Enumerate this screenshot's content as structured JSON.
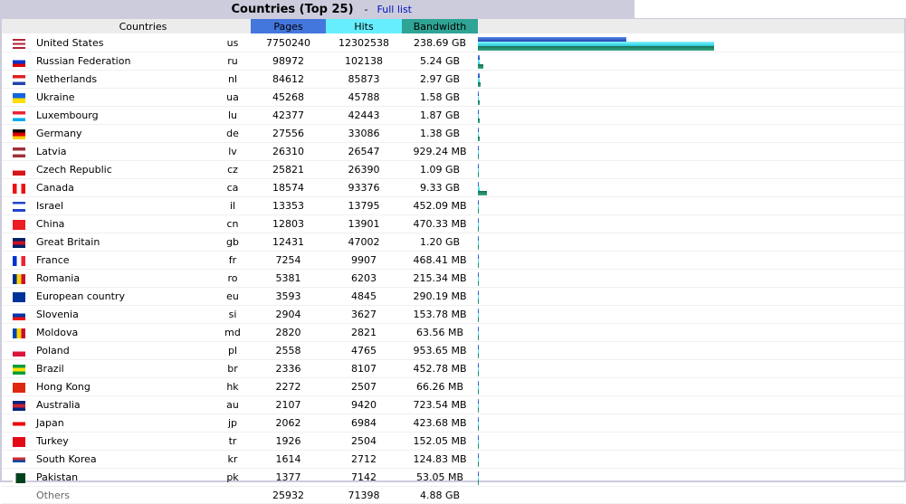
{
  "title": "Countries (Top 25)",
  "separator": "-",
  "full_list_label": "Full list",
  "headers": {
    "countries": "Countries",
    "pages": "Pages",
    "hits": "Hits",
    "bandwidth": "Bandwidth"
  },
  "colors": {
    "pages": "#4477dd",
    "hits": "#66eeff",
    "bandwidth": "#2ea495",
    "frame": "#ccccdd"
  },
  "rows": [
    {
      "name": "United States",
      "code": "us",
      "pages": "7750240",
      "hits": "12302538",
      "bandwidth": "238.69 GB",
      "flag": [
        "#b22234",
        "#ffffff",
        "#b22234",
        "#ffffff",
        "#b22234"
      ]
    },
    {
      "name": "Russian Federation",
      "code": "ru",
      "pages": "98972",
      "hits": "102138",
      "bandwidth": "5.24 GB",
      "flag": [
        "#ffffff",
        "#0033cc",
        "#dd0000"
      ]
    },
    {
      "name": "Netherlands",
      "code": "nl",
      "pages": "84612",
      "hits": "85873",
      "bandwidth": "2.97 GB",
      "flag": [
        "#dd2222",
        "#ffffff",
        "#2244aa"
      ]
    },
    {
      "name": "Ukraine",
      "code": "ua",
      "pages": "45268",
      "hits": "45788",
      "bandwidth": "1.58 GB",
      "flag": [
        "#1166dd",
        "#ffdd00"
      ]
    },
    {
      "name": "Luxembourg",
      "code": "lu",
      "pages": "42377",
      "hits": "42443",
      "bandwidth": "1.87 GB",
      "flag": [
        "#ee2233",
        "#ffffff",
        "#00aaee"
      ]
    },
    {
      "name": "Germany",
      "code": "de",
      "pages": "27556",
      "hits": "33086",
      "bandwidth": "1.38 GB",
      "flag": [
        "#000000",
        "#dd0000",
        "#ffcc00"
      ]
    },
    {
      "name": "Latvia",
      "code": "lv",
      "pages": "26310",
      "hits": "26547",
      "bandwidth": "929.24 MB",
      "flag": [
        "#9e3039",
        "#ffffff",
        "#9e3039"
      ]
    },
    {
      "name": "Czech Republic",
      "code": "cz",
      "pages": "25821",
      "hits": "26390",
      "bandwidth": "1.09 GB",
      "flag": [
        "#ffffff",
        "#d7141a"
      ]
    },
    {
      "name": "Canada",
      "code": "ca",
      "pages": "18574",
      "hits": "93376",
      "bandwidth": "9.33 GB",
      "flag": [
        "#ee1111",
        "#ffffff",
        "#ee1111"
      ],
      "vertical": true
    },
    {
      "name": "Israel",
      "code": "il",
      "pages": "13353",
      "hits": "13795",
      "bandwidth": "452.09 MB",
      "flag": [
        "#2244cc",
        "#ffffff",
        "#ffffff",
        "#2244cc"
      ]
    },
    {
      "name": "China",
      "code": "cn",
      "pages": "12803",
      "hits": "13901",
      "bandwidth": "470.33 MB",
      "flag": [
        "#ee1c25"
      ]
    },
    {
      "name": "Great Britain",
      "code": "gb",
      "pages": "12431",
      "hits": "47002",
      "bandwidth": "1.20 GB",
      "flag": [
        "#012169",
        "#cc1122",
        "#012169"
      ]
    },
    {
      "name": "France",
      "code": "fr",
      "pages": "7254",
      "hits": "9907",
      "bandwidth": "468.41 MB",
      "flag": [
        "#0033cc",
        "#ffffff",
        "#ee2233"
      ],
      "vertical": true
    },
    {
      "name": "Romania",
      "code": "ro",
      "pages": "5381",
      "hits": "6203",
      "bandwidth": "215.34 MB",
      "flag": [
        "#002b7f",
        "#fcd116",
        "#ce1126"
      ],
      "vertical": true
    },
    {
      "name": "European country",
      "code": "eu",
      "pages": "3593",
      "hits": "4845",
      "bandwidth": "290.19 MB",
      "flag": [
        "#003399"
      ]
    },
    {
      "name": "Slovenia",
      "code": "si",
      "pages": "2904",
      "hits": "3627",
      "bandwidth": "153.78 MB",
      "flag": [
        "#ffffff",
        "#0033aa",
        "#ee1111"
      ]
    },
    {
      "name": "Moldova",
      "code": "md",
      "pages": "2820",
      "hits": "2821",
      "bandwidth": "63.56 MB",
      "flag": [
        "#0046ae",
        "#ffd200",
        "#cc092f"
      ],
      "vertical": true
    },
    {
      "name": "Poland",
      "code": "pl",
      "pages": "2558",
      "hits": "4765",
      "bandwidth": "953.65 MB",
      "flag": [
        "#ffffff",
        "#dc143c"
      ]
    },
    {
      "name": "Brazil",
      "code": "br",
      "pages": "2336",
      "hits": "8107",
      "bandwidth": "452.78 MB",
      "flag": [
        "#009c3b",
        "#ffdf00",
        "#009c3b"
      ]
    },
    {
      "name": "Hong Kong",
      "code": "hk",
      "pages": "2272",
      "hits": "2507",
      "bandwidth": "66.26 MB",
      "flag": [
        "#de2910"
      ]
    },
    {
      "name": "Australia",
      "code": "au",
      "pages": "2107",
      "hits": "9420",
      "bandwidth": "723.54 MB",
      "flag": [
        "#00247d",
        "#cc2233",
        "#00247d"
      ]
    },
    {
      "name": "Japan",
      "code": "jp",
      "pages": "2062",
      "hits": "6984",
      "bandwidth": "423.68 MB",
      "flag": [
        "#ffffff",
        "#ee0000",
        "#ffffff"
      ]
    },
    {
      "name": "Turkey",
      "code": "tr",
      "pages": "1926",
      "hits": "2504",
      "bandwidth": "152.05 MB",
      "flag": [
        "#e30a17"
      ]
    },
    {
      "name": "South Korea",
      "code": "kr",
      "pages": "1614",
      "hits": "2712",
      "bandwidth": "124.83 MB",
      "flag": [
        "#ffffff",
        "#cd2e3a",
        "#0047a0",
        "#ffffff"
      ]
    },
    {
      "name": "Pakistan",
      "code": "pk",
      "pages": "1377",
      "hits": "7142",
      "bandwidth": "53.05 MB",
      "flag": [
        "#ffffff",
        "#01411c",
        "#01411c",
        "#01411c"
      ],
      "vertical": true
    }
  ],
  "others": {
    "name": "Others",
    "pages": "25932",
    "hits": "71398",
    "bandwidth": "4.88 GB"
  }
}
